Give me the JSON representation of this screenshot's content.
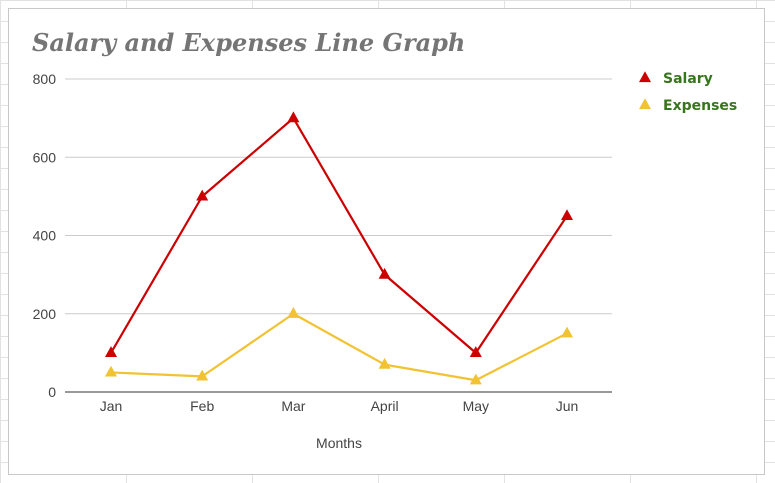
{
  "chart_data": {
    "type": "line",
    "title": "Salary and Expenses Line Graph",
    "xlabel": "Months",
    "ylabel": "",
    "categories": [
      "Jan",
      "Feb",
      "Mar",
      "April",
      "May",
      "Jun"
    ],
    "series": [
      {
        "name": "Salary",
        "values": [
          100,
          500,
          700,
          300,
          100,
          450
        ],
        "color": "#cc0000"
      },
      {
        "name": "Expenses",
        "values": [
          50,
          40,
          200,
          70,
          30,
          150
        ],
        "color": "#f1c232"
      }
    ],
    "ylim": [
      0,
      800
    ],
    "yticks": [
      0,
      200,
      400,
      600,
      800
    ],
    "grid": true,
    "legend_position": "right",
    "marker": "triangle"
  }
}
